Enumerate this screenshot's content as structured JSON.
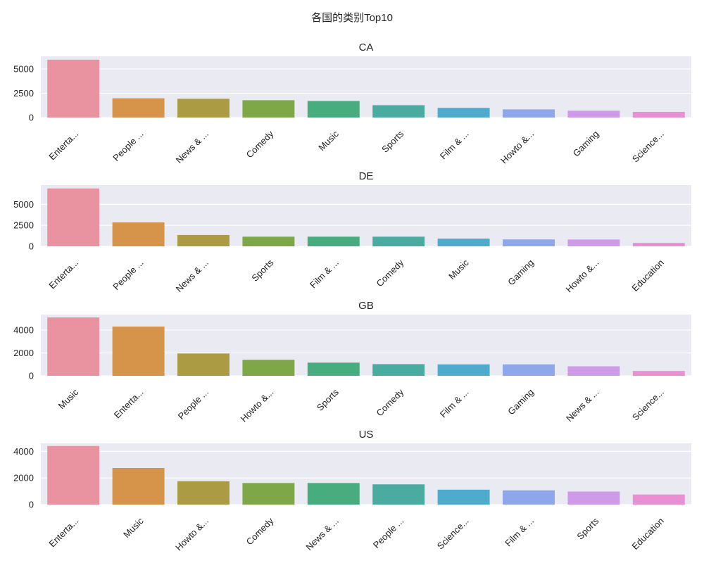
{
  "figure": {
    "suptitle": "各国的类别Top10",
    "background": "#ffffff",
    "axes_background": "#eaeaf2",
    "grid_color": "#ffffff",
    "text_color": "#222222"
  },
  "palette": [
    "#e8939f",
    "#d6944a",
    "#ab9c44",
    "#7ea847",
    "#47ad7e",
    "#4aaba1",
    "#4eabcb",
    "#8ea6ea",
    "#cf9ae8",
    "#e890d2"
  ],
  "chart_data": [
    {
      "type": "bar",
      "title": "CA",
      "xlabel": "",
      "ylabel": "",
      "ylim": [
        0,
        6300
      ],
      "yticks": [
        0,
        2500,
        5000
      ],
      "categories": [
        "Enterta...",
        "People ...",
        "News & ...",
        "Comedy",
        "Music",
        "Sports",
        "Film & ...",
        "Howto &...",
        "Gaming",
        "Science..."
      ],
      "values": [
        5950,
        1980,
        1930,
        1780,
        1700,
        1270,
        990,
        840,
        700,
        580
      ]
    },
    {
      "type": "bar",
      "title": "DE",
      "xlabel": "",
      "ylabel": "",
      "ylim": [
        0,
        7300
      ],
      "yticks": [
        0,
        2500,
        5000
      ],
      "categories": [
        "Enterta...",
        "People ...",
        "News & ...",
        "Sports",
        "Film & ...",
        "Comedy",
        "Music",
        "Gaming",
        "Howto &...",
        "Education"
      ],
      "values": [
        6900,
        2850,
        1350,
        1150,
        1150,
        1150,
        920,
        820,
        810,
        400
      ]
    },
    {
      "type": "bar",
      "title": "GB",
      "xlabel": "",
      "ylabel": "",
      "ylim": [
        0,
        5350
      ],
      "yticks": [
        0,
        2000,
        4000
      ],
      "categories": [
        "Music",
        "Enterta...",
        "People ...",
        "Howto &...",
        "Sports",
        "Comedy",
        "Film & ...",
        "Gaming",
        "News & ...",
        "Science..."
      ],
      "values": [
        5100,
        4300,
        1950,
        1400,
        1150,
        1020,
        1000,
        1000,
        830,
        420
      ]
    },
    {
      "type": "bar",
      "title": "US",
      "xlabel": "",
      "ylabel": "",
      "ylim": [
        0,
        4600
      ],
      "yticks": [
        0,
        2000,
        4000
      ],
      "categories": [
        "Enterta...",
        "Music",
        "Howto &...",
        "Comedy",
        "News & ...",
        "People ...",
        "Science...",
        "Film & ...",
        "Sports",
        "Education"
      ],
      "values": [
        4400,
        2750,
        1750,
        1620,
        1620,
        1520,
        1120,
        1070,
        980,
        760
      ]
    }
  ]
}
